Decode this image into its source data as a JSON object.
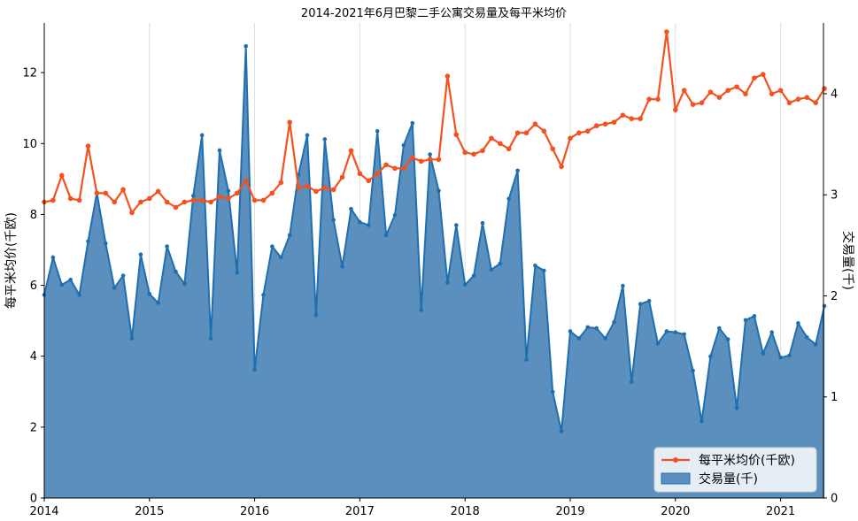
{
  "chart_data": {
    "type": "line",
    "title": "2014-2021年6月巴黎二手公寓交易量及每平米均价",
    "ylabel_left": "每平米均价(千欧)",
    "ylabel_right": "交易量(千)",
    "x_start": "2014-01",
    "x_tick_labels": [
      "2014",
      "2015",
      "2016",
      "2017",
      "2018",
      "2019",
      "2020",
      "2021"
    ],
    "ylim_left": [
      0,
      13.4
    ],
    "ylim_right": [
      0,
      4.7
    ],
    "yticks_left": [
      "0",
      "2",
      "4",
      "6",
      "8",
      "10",
      "12"
    ],
    "yticks_right": [
      "0",
      "1",
      "2",
      "3",
      "4"
    ],
    "grid": "vertical",
    "legend_position": "bottom-right",
    "colors": {
      "price": "#f4511e",
      "volume_fill": "#5b8fbd",
      "volume_line": "#1f6fb0"
    },
    "series": [
      {
        "name": "每平米均价(千欧)",
        "axis": "left",
        "type": "line",
        "values": [
          8.35,
          8.4,
          9.1,
          8.45,
          8.4,
          9.93,
          8.6,
          8.6,
          8.35,
          8.7,
          8.05,
          8.35,
          8.45,
          8.65,
          8.35,
          8.2,
          8.35,
          8.4,
          8.4,
          8.35,
          8.5,
          8.45,
          8.6,
          8.95,
          8.4,
          8.4,
          8.6,
          8.9,
          10.6,
          8.75,
          8.8,
          8.65,
          8.75,
          8.7,
          9.05,
          9.8,
          9.15,
          8.95,
          9.15,
          9.4,
          9.3,
          9.3,
          9.6,
          9.5,
          9.55,
          9.55,
          11.9,
          10.25,
          9.75,
          9.7,
          9.8,
          10.15,
          10.0,
          9.85,
          10.3,
          10.3,
          10.55,
          10.35,
          9.85,
          9.35,
          10.15,
          10.3,
          10.35,
          10.5,
          10.55,
          10.6,
          10.8,
          10.7,
          10.7,
          11.25,
          11.25,
          13.15,
          10.95,
          11.5,
          11.1,
          11.15,
          11.45,
          11.3,
          11.5,
          11.6,
          11.4,
          11.85,
          11.95,
          11.4,
          11.5,
          11.15,
          11.25,
          11.3,
          11.15,
          11.55
        ]
      },
      {
        "name": "交易量(千)",
        "axis": "right",
        "type": "area",
        "values": [
          2.01,
          2.38,
          2.11,
          2.16,
          2.01,
          2.54,
          3.02,
          2.52,
          2.08,
          2.2,
          1.58,
          2.41,
          2.02,
          1.93,
          2.49,
          2.24,
          2.12,
          2.99,
          3.59,
          1.58,
          3.44,
          3.04,
          2.23,
          4.47,
          1.27,
          2.01,
          2.49,
          2.38,
          2.6,
          3.2,
          3.59,
          1.81,
          3.55,
          2.75,
          2.29,
          2.86,
          2.73,
          2.7,
          3.63,
          2.6,
          2.8,
          3.49,
          3.71,
          1.86,
          3.4,
          3.04,
          2.13,
          2.7,
          2.11,
          2.2,
          2.72,
          2.26,
          2.32,
          2.96,
          3.24,
          1.37,
          2.3,
          2.25,
          1.05,
          0.66,
          1.65,
          1.58,
          1.69,
          1.68,
          1.58,
          1.74,
          2.1,
          1.15,
          1.92,
          1.95,
          1.53,
          1.65,
          1.64,
          1.62,
          1.26,
          0.76,
          1.4,
          1.68,
          1.57,
          0.89,
          1.76,
          1.8,
          1.43,
          1.64,
          1.39,
          1.41,
          1.73,
          1.59,
          1.52,
          1.9
        ]
      }
    ]
  }
}
